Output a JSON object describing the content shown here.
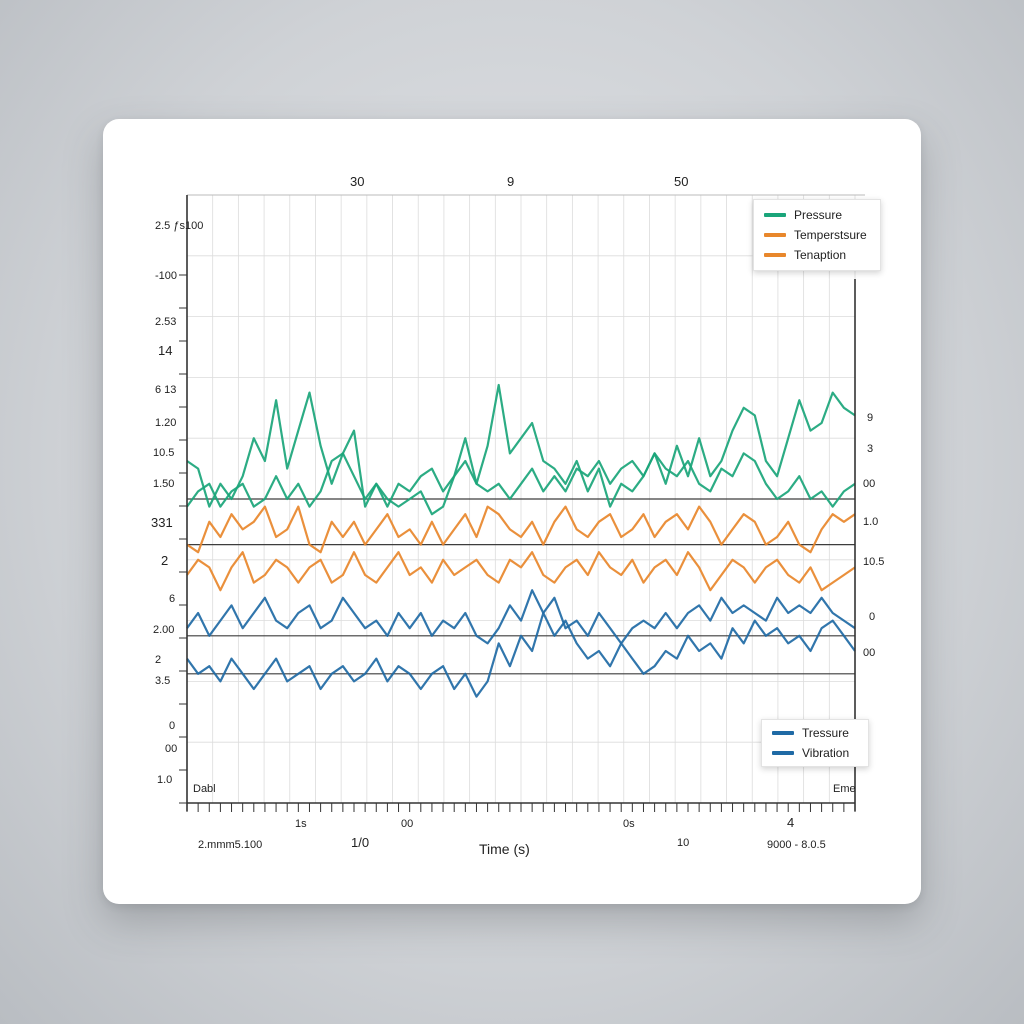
{
  "colors": {
    "green": "#1aa57a",
    "orange": "#e8872b",
    "blue": "#1f6aa5",
    "light_blue": "#4aa3d8",
    "grid": "#dcdcdc",
    "axis": "#333333",
    "ref_line": "#3d3d3d"
  },
  "legend_top": {
    "items": [
      {
        "label": "Pressure",
        "color": "#1aa57a"
      },
      {
        "label": "Temperstsure",
        "color": "#e8872b"
      },
      {
        "label": "Tenaption",
        "color": "#e8872b"
      }
    ]
  },
  "legend_bottom": {
    "items": [
      {
        "label": "Tressure",
        "color": "#1f6aa5"
      },
      {
        "label": "Vibration",
        "color": "#1f6aa5"
      }
    ]
  },
  "top_labels": [
    "30",
    "9",
    "50"
  ],
  "left_labels": [
    "2.5 ƒs100",
    "-100",
    "2.53",
    "14",
    "6 13",
    "1.20",
    "10.5",
    "1.50",
    "331",
    "2",
    "6",
    "2.00",
    "2",
    "3.5",
    "0",
    "00",
    "1.0"
  ],
  "right_labels": [
    "9",
    "3",
    "00",
    "1.0",
    "10.5",
    "0",
    "00"
  ],
  "bottom_labels": [
    "1s",
    "1/0",
    "00",
    "0s",
    "10",
    "4"
  ],
  "bottom_left_text": "2.mmm5.100",
  "bottom_right_text": "9000 - 8.0.5",
  "corner_left": "Dabl",
  "corner_right": "Eme",
  "chart_data": {
    "type": "line",
    "xlabel": "Time (s)",
    "x": [
      0,
      1,
      2,
      3,
      4,
      5,
      6,
      7,
      8,
      9,
      10,
      11,
      12,
      13,
      14,
      15,
      16,
      17,
      18,
      19,
      20,
      21,
      22,
      23,
      24,
      25,
      26,
      27,
      28,
      29,
      30,
      31,
      32,
      33,
      34,
      35,
      36,
      37,
      38,
      39,
      40,
      41,
      42,
      43,
      44,
      45,
      46,
      47,
      48,
      49,
      50,
      51,
      52,
      53,
      54,
      55,
      56,
      57,
      58,
      59,
      60
    ],
    "series": [
      {
        "color": "#1aa57a",
        "values": [
          22.5,
          22.0,
          19.5,
          21.0,
          20.0,
          21.5,
          24.0,
          22.5,
          26.5,
          22.0,
          24.5,
          27.0,
          23.5,
          21.0,
          23.0,
          24.5,
          19.5,
          21.0,
          20.0,
          19.5,
          20.0,
          20.5,
          19.0,
          19.5,
          21.5,
          24.0,
          21.0,
          23.5,
          27.5,
          23.0,
          24.0,
          25.0,
          22.5,
          22.0,
          21.0,
          22.5,
          20.5,
          22.0,
          19.5,
          21.0,
          20.5,
          21.5,
          23.0,
          21.0,
          23.5,
          21.5,
          24.0,
          21.5,
          22.5,
          24.5,
          26.0,
          25.5,
          22.5,
          21.5,
          24.0,
          26.5,
          24.5,
          25.0,
          27.0,
          26.0,
          25.5
        ]
      },
      {
        "color": "#1aa57a",
        "values": [
          19.5,
          20.5,
          21.0,
          19.5,
          20.5,
          21.0,
          19.5,
          20.0,
          21.5,
          20.0,
          21.0,
          19.5,
          20.5,
          22.5,
          23.0,
          21.5,
          20.0,
          21.0,
          19.5,
          21.0,
          20.5,
          21.5,
          22.0,
          20.5,
          21.5,
          22.5,
          21.0,
          20.5,
          21.0,
          20.0,
          21.0,
          22.0,
          20.5,
          21.5,
          20.5,
          22.0,
          21.5,
          22.5,
          21.0,
          22.0,
          22.5,
          21.5,
          23.0,
          22.0,
          21.5,
          22.5,
          21.0,
          20.5,
          22.0,
          21.5,
          23.0,
          22.5,
          21.0,
          20.0,
          20.5,
          21.5,
          20.0,
          20.5,
          19.5,
          20.5,
          21.0
        ]
      },
      {
        "color": "#e8872b",
        "values": [
          17.0,
          16.5,
          18.5,
          17.5,
          19.0,
          18.0,
          18.5,
          19.5,
          17.5,
          18.0,
          19.5,
          17.0,
          16.5,
          18.5,
          17.5,
          18.5,
          17.0,
          18.0,
          19.0,
          17.5,
          18.0,
          17.0,
          18.5,
          17.0,
          18.0,
          19.0,
          17.5,
          19.5,
          19.0,
          18.0,
          17.5,
          18.5,
          17.0,
          18.5,
          19.5,
          18.0,
          17.5,
          18.5,
          19.0,
          17.5,
          18.0,
          19.0,
          17.5,
          18.5,
          19.0,
          18.0,
          19.5,
          18.5,
          17.0,
          18.0,
          19.0,
          18.5,
          17.0,
          17.5,
          18.5,
          17.0,
          16.5,
          18.0,
          19.0,
          18.5,
          19.0
        ]
      },
      {
        "color": "#e8872b",
        "values": [
          15.0,
          16.0,
          15.5,
          14.0,
          15.5,
          16.5,
          14.5,
          15.0,
          16.0,
          15.5,
          14.5,
          15.5,
          16.0,
          14.5,
          15.0,
          16.5,
          15.0,
          14.5,
          15.5,
          16.5,
          15.0,
          15.5,
          14.5,
          16.0,
          15.0,
          15.5,
          16.0,
          15.0,
          14.5,
          16.0,
          15.5,
          16.5,
          15.0,
          14.5,
          15.5,
          16.0,
          15.0,
          16.5,
          15.5,
          15.0,
          16.0,
          14.5,
          15.5,
          16.0,
          15.0,
          16.5,
          15.5,
          14.0,
          15.0,
          16.0,
          15.5,
          14.5,
          15.5,
          16.0,
          15.0,
          14.5,
          15.5,
          14.0,
          14.5,
          15.0,
          15.5
        ]
      },
      {
        "color": "#1f6aa5",
        "values": [
          11.5,
          12.5,
          11.0,
          12.0,
          13.0,
          11.5,
          12.5,
          13.5,
          12.0,
          11.5,
          12.5,
          13.0,
          11.5,
          12.0,
          13.5,
          12.5,
          11.5,
          12.0,
          11.0,
          12.5,
          11.5,
          12.5,
          11.0,
          12.0,
          11.5,
          12.5,
          11.0,
          10.5,
          11.5,
          13.0,
          12.0,
          14.0,
          12.5,
          13.5,
          11.5,
          12.0,
          11.0,
          12.5,
          11.5,
          10.5,
          11.5,
          12.0,
          11.5,
          12.5,
          11.5,
          12.5,
          13.0,
          12.0,
          13.5,
          12.5,
          13.0,
          12.5,
          12.0,
          13.5,
          12.5,
          13.0,
          12.5,
          13.5,
          12.5,
          12.0,
          11.5
        ]
      },
      {
        "color": "#1f6aa5",
        "values": [
          9.5,
          8.5,
          9.0,
          8.0,
          9.5,
          8.5,
          7.5,
          8.5,
          9.5,
          8.0,
          8.5,
          9.0,
          7.5,
          8.5,
          9.0,
          8.0,
          8.5,
          9.5,
          8.0,
          9.0,
          8.5,
          7.5,
          8.5,
          9.0,
          7.5,
          8.5,
          7.0,
          8.0,
          10.5,
          9.0,
          11.0,
          10.0,
          12.5,
          11.0,
          12.0,
          10.5,
          9.5,
          10.0,
          9.0,
          10.5,
          9.5,
          8.5,
          9.0,
          10.0,
          9.5,
          11.0,
          10.0,
          10.5,
          9.5,
          11.5,
          10.5,
          12.0,
          11.0,
          11.5,
          10.5,
          11.0,
          10.0,
          11.5,
          12.0,
          11.0,
          10.0
        ]
      }
    ],
    "reference_lines": [
      20.0,
      17.0,
      11.0,
      8.5
    ],
    "ylim": [
      0,
      40
    ],
    "xlim": [
      0,
      60
    ],
    "grid": true,
    "legend_placement": "top-right"
  }
}
